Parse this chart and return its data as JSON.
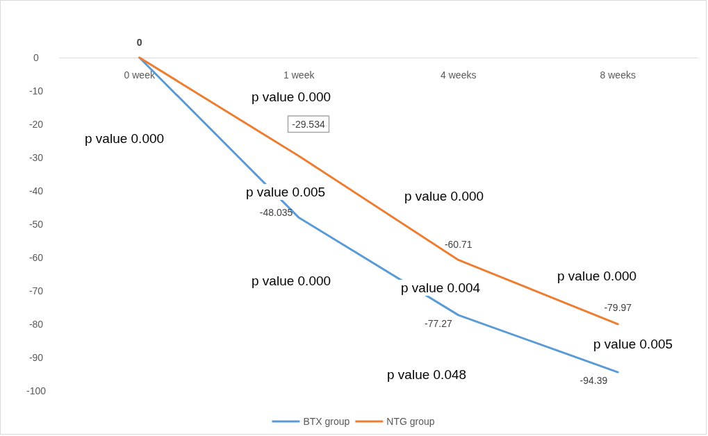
{
  "chart_data": {
    "type": "line",
    "categories": [
      "0 week",
      "1 week",
      "4 weeks",
      "8 weeks"
    ],
    "series": [
      {
        "name": "BTX group",
        "color": "#5b9bd5",
        "values": [
          0,
          -48.035,
          -77.27,
          -94.39
        ],
        "value_labels": [
          null,
          "-48.035",
          "-77.27",
          "-94.39"
        ]
      },
      {
        "name": "NTG group",
        "color": "#ed7d31",
        "values": [
          0,
          -29.534,
          -60.71,
          -79.97
        ],
        "value_labels": [
          "0",
          "-29.534",
          "-60.71",
          "-79.97"
        ]
      }
    ],
    "ylim": [
      -100,
      0
    ],
    "yticks": [
      -100,
      -90,
      -80,
      -70,
      -60,
      -50,
      -40,
      -30,
      -20,
      -10,
      0
    ],
    "grid": false,
    "legend": "bottom",
    "marker": "none",
    "line_style": "solid",
    "annotations": [
      "p value 0.000",
      "p value 0.000",
      "p value 0.005",
      "p value 0.000",
      "p value 0.000",
      "p value 0.000",
      "p value 0.004",
      "p value 0.005",
      "p value 0.048"
    ]
  }
}
